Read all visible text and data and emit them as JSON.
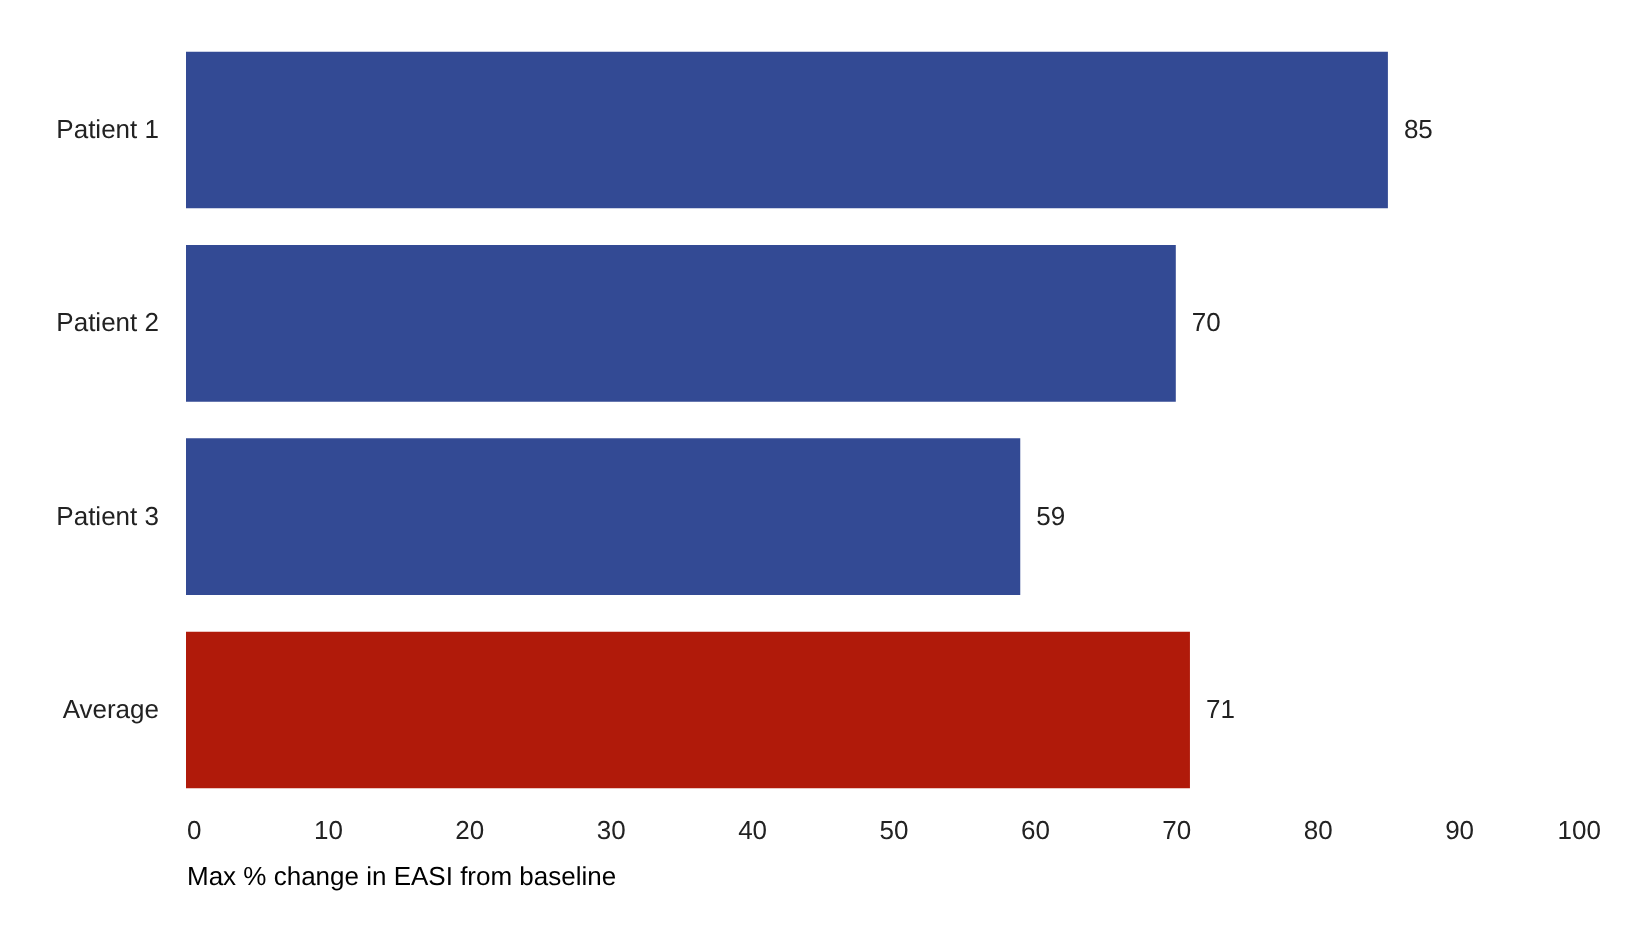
{
  "chart_data": {
    "type": "bar",
    "orientation": "horizontal",
    "xlabel": "Max % change in EASI from baseline",
    "categories": [
      "Patient 1",
      "Patient 2",
      "Patient 3",
      "Average"
    ],
    "values": [
      85,
      70,
      59,
      71
    ],
    "colors": [
      "#334a94",
      "#334a94",
      "#334a94",
      "#b01a0a"
    ],
    "xlim": [
      0,
      100
    ],
    "xticks": [
      0,
      10,
      20,
      30,
      40,
      50,
      60,
      70,
      80,
      90,
      100
    ],
    "data_labels": true,
    "grid": false
  }
}
